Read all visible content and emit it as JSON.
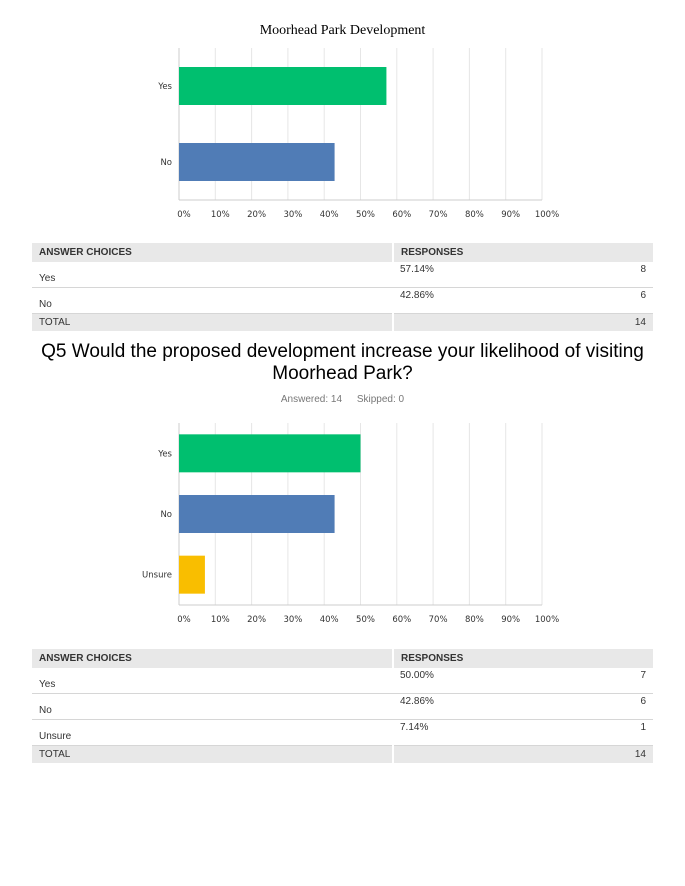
{
  "page": {
    "title": "Moorhead Park Development"
  },
  "q4": {
    "table": {
      "headers": [
        "ANSWER CHOICES",
        "RESPONSES"
      ],
      "rows": [
        {
          "choice": "Yes",
          "percent": "57.14%",
          "count": "8"
        },
        {
          "choice": "No",
          "percent": "42.86%",
          "count": "6"
        }
      ],
      "total_label": "TOTAL",
      "total_count": "14"
    }
  },
  "q5": {
    "title": "Q5 Would the proposed development increase your likelihood of visiting Moorhead Park?",
    "answered": "Answered: 14",
    "skipped": "Skipped: 0",
    "table": {
      "headers": [
        "ANSWER CHOICES",
        "RESPONSES"
      ],
      "rows": [
        {
          "choice": "Yes",
          "percent": "50.00%",
          "count": "7"
        },
        {
          "choice": "No",
          "percent": "42.86%",
          "count": "6"
        },
        {
          "choice": "Unsure",
          "percent": "7.14%",
          "count": "1"
        }
      ],
      "total_label": "TOTAL",
      "total_count": "14"
    }
  },
  "colors": {
    "yes": "#00bf6f",
    "no": "#507cb6",
    "unsure": "#f9be00",
    "grid": "#e6e6e6",
    "axis": "#cccccc"
  },
  "chart_data": [
    {
      "type": "bar",
      "orientation": "horizontal",
      "categories": [
        "Yes",
        "No"
      ],
      "values": [
        57.14,
        42.86
      ],
      "xlim": [
        0,
        100
      ],
      "ticks": [
        "0%",
        "10%",
        "20%",
        "30%",
        "40%",
        "50%",
        "60%",
        "70%",
        "80%",
        "90%",
        "100%"
      ],
      "grid": true,
      "bar_colors": [
        "#00bf6f",
        "#507cb6"
      ]
    },
    {
      "type": "bar",
      "orientation": "horizontal",
      "categories": [
        "Yes",
        "No",
        "Unsure"
      ],
      "values": [
        50.0,
        42.86,
        7.14
      ],
      "xlim": [
        0,
        100
      ],
      "ticks": [
        "0%",
        "10%",
        "20%",
        "30%",
        "40%",
        "50%",
        "60%",
        "70%",
        "80%",
        "90%",
        "100%"
      ],
      "grid": true,
      "bar_colors": [
        "#00bf6f",
        "#507cb6",
        "#f9be00"
      ]
    }
  ]
}
